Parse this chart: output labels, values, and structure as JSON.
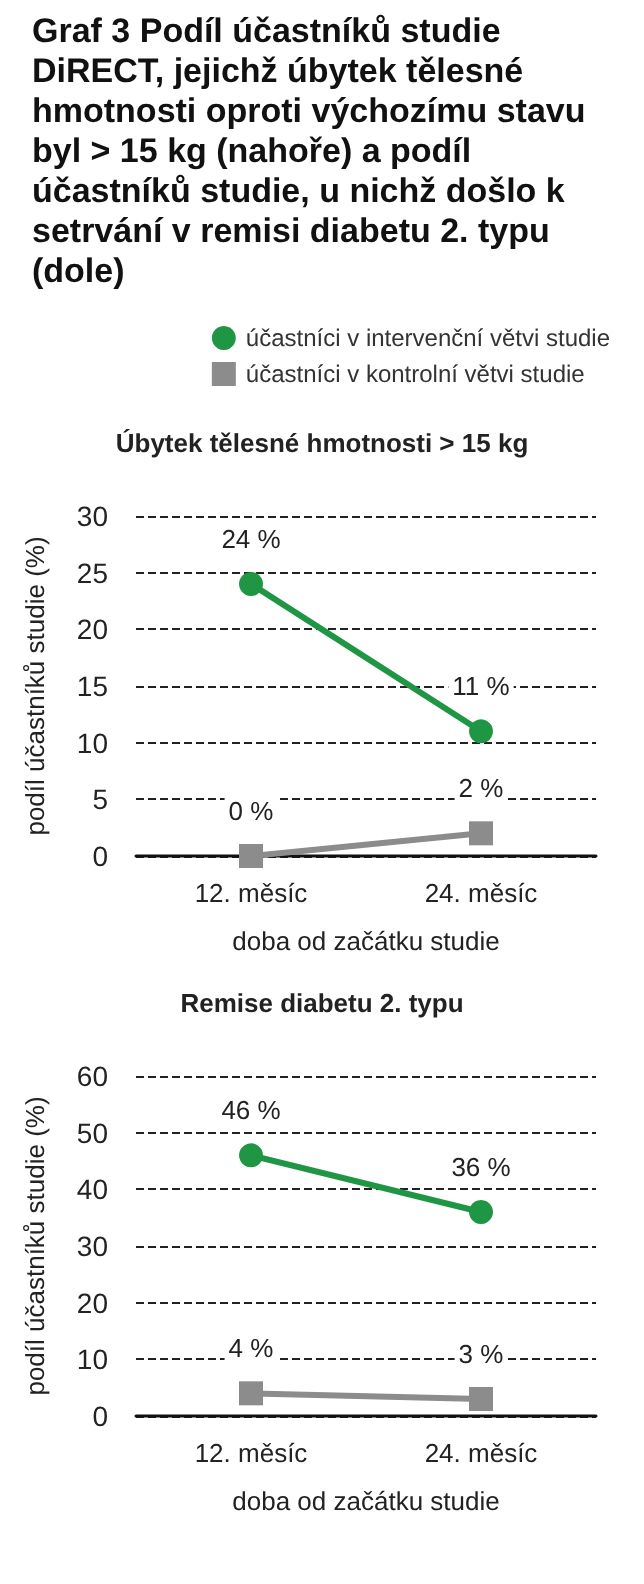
{
  "chart_data": [
    {
      "type": "line",
      "title": "Graf 3 Podíl účastníků studie DiRECT, jejichž úbytek tělesné hmotnosti oproti výchozímu stavu byl > 15 kg (nahoře) a podíl účastníků studie, u nichž došlo k setrvání v remisi diabetu 2. typu (dole)",
      "subtitle": "Úbytek tělesné hmotnosti > 15 kg",
      "xlabel": "doba od začátku studie",
      "ylabel": "podíl účastníků studie (%)",
      "categories": [
        "12. měsíc",
        "24. měsíc"
      ],
      "series": [
        {
          "name": "účastníci v intervenční větvi studie",
          "color": "#1e9644",
          "marker": "circle",
          "values": [
            24,
            11
          ],
          "value_labels": [
            "24 %",
            "11 %"
          ]
        },
        {
          "name": "účastníci v kontrolní větvi studie",
          "color": "#8c8c8c",
          "marker": "square",
          "values": [
            0,
            2
          ],
          "value_labels": [
            "0 %",
            "2 %"
          ]
        }
      ],
      "ylim": [
        0,
        30
      ],
      "yticks": [
        0,
        5,
        10,
        15,
        20,
        25,
        30
      ],
      "grid": "y",
      "legend": "top right"
    },
    {
      "type": "line",
      "title": "Remise diabetu 2. typu",
      "xlabel": "doba od začátku studie",
      "ylabel": "podíl účastníků studie (%)",
      "categories": [
        "12. měsíc",
        "24. měsíc"
      ],
      "series": [
        {
          "color": "#1e9644",
          "marker": "circle",
          "values": [
            46,
            36
          ],
          "value_labels": [
            "46 %",
            "36 %"
          ]
        },
        {
          "color": "#8c8c8c",
          "marker": "square",
          "values": [
            4,
            3
          ],
          "value_labels": [
            "4 %",
            "3 %"
          ]
        }
      ],
      "ylim": [
        0,
        60
      ],
      "yticks": [
        0,
        10,
        20,
        30,
        40,
        50,
        60
      ],
      "grid": "y"
    }
  ]
}
